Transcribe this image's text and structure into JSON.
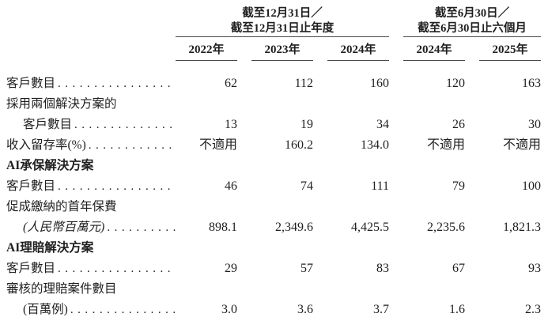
{
  "colors": {
    "text": "#1f1f1f",
    "rule": "#4a4a4a",
    "background": "#ffffff"
  },
  "table": {
    "groups": [
      {
        "title_line1": "截至12月31日／",
        "title_line2": "截至12月31日止年度",
        "years": [
          "2022年",
          "2023年",
          "2024年"
        ]
      },
      {
        "title_line1": "截至6月30日／",
        "title_line2": "截至6月30日止六個月",
        "years": [
          "2024年",
          "2025年"
        ]
      }
    ],
    "rows": [
      {
        "label": "客戶數目",
        "values": [
          "62",
          "112",
          "160",
          "120",
          "163"
        ]
      },
      {
        "label": "採用兩個解決方案的"
      },
      {
        "label": "客戶數目",
        "values": [
          "13",
          "19",
          "34",
          "26",
          "30"
        ]
      },
      {
        "label": "收入留存率(%)",
        "values": [
          "不適用",
          "160.2",
          "134.0",
          "不適用",
          "不適用"
        ]
      },
      {
        "label": "AI承保解決方案"
      },
      {
        "label": "客戶數目",
        "values": [
          "46",
          "74",
          "111",
          "79",
          "100"
        ]
      },
      {
        "label": "促成繳納的首年保費"
      },
      {
        "label": "(人民幣百萬元)",
        "values": [
          "898.1",
          "2,349.6",
          "4,425.5",
          "2,235.6",
          "1,821.3"
        ]
      },
      {
        "label": "AI理賠解決方案"
      },
      {
        "label": "客戶數目",
        "values": [
          "29",
          "57",
          "83",
          "67",
          "93"
        ]
      },
      {
        "label": "審核的理賠案件數目"
      },
      {
        "label": "(百萬例)",
        "values": [
          "3.0",
          "3.6",
          "3.7",
          "1.6",
          "2.3"
        ]
      }
    ]
  }
}
